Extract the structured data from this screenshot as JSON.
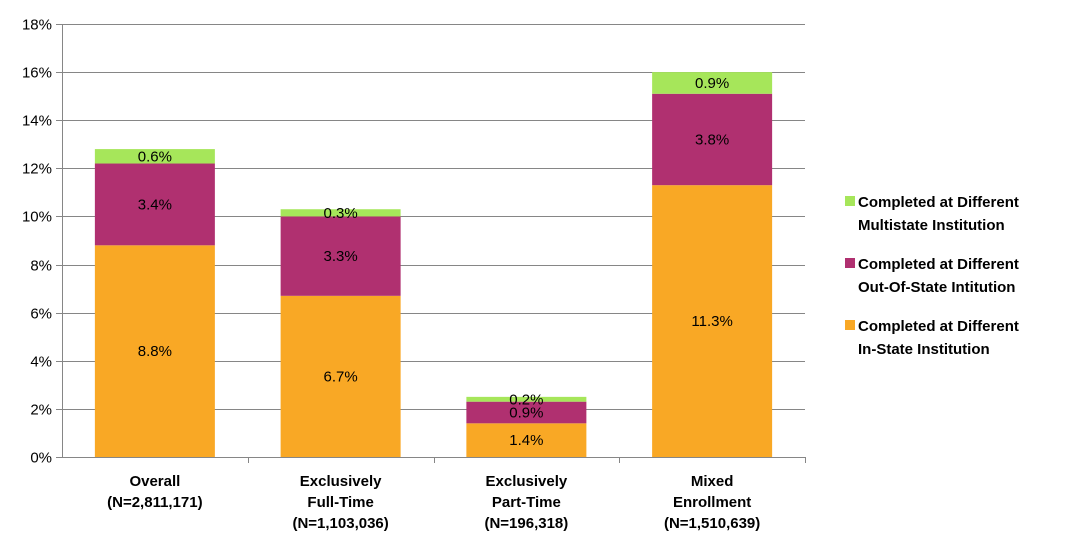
{
  "chart_data": {
    "type": "bar",
    "stacked": true,
    "title": "",
    "xlabel": "",
    "ylabel": "",
    "ylim": [
      0,
      18
    ],
    "y_tick_step": 2,
    "y_tick_format": "percent",
    "grid": true,
    "legend_position": "right",
    "categories": [
      [
        "Overall",
        "(N=2,811,171)"
      ],
      [
        "Exclusively",
        "Full-Time",
        "(N=1,103,036)"
      ],
      [
        "Exclusively",
        "Part-Time",
        "(N=196,318)"
      ],
      [
        "Mixed",
        "Enrollment",
        "(N=1,510,639)"
      ]
    ],
    "series": [
      {
        "name": [
          "Completed at Different",
          "In-State Institution"
        ],
        "color": "#F9A825",
        "values": [
          8.8,
          6.7,
          1.4,
          11.3
        ],
        "labels": [
          "8.8%",
          "6.7%",
          "1.4%",
          "11.3%"
        ]
      },
      {
        "name": [
          "Completed at Different",
          "Out-Of-State Intitution"
        ],
        "color": "#B03070",
        "values": [
          3.4,
          3.3,
          0.9,
          3.8
        ],
        "labels": [
          "3.4%",
          "3.3%",
          "0.9%",
          "3.8%"
        ]
      },
      {
        "name": [
          "Completed at Different",
          "Multistate Institution"
        ],
        "color": "#A6E65A",
        "values": [
          0.6,
          0.3,
          0.2,
          0.9
        ],
        "labels": [
          "0.6%",
          "0.3%",
          "0.2%",
          "0.9%"
        ]
      }
    ],
    "legend_order": [
      2,
      1,
      0
    ]
  }
}
